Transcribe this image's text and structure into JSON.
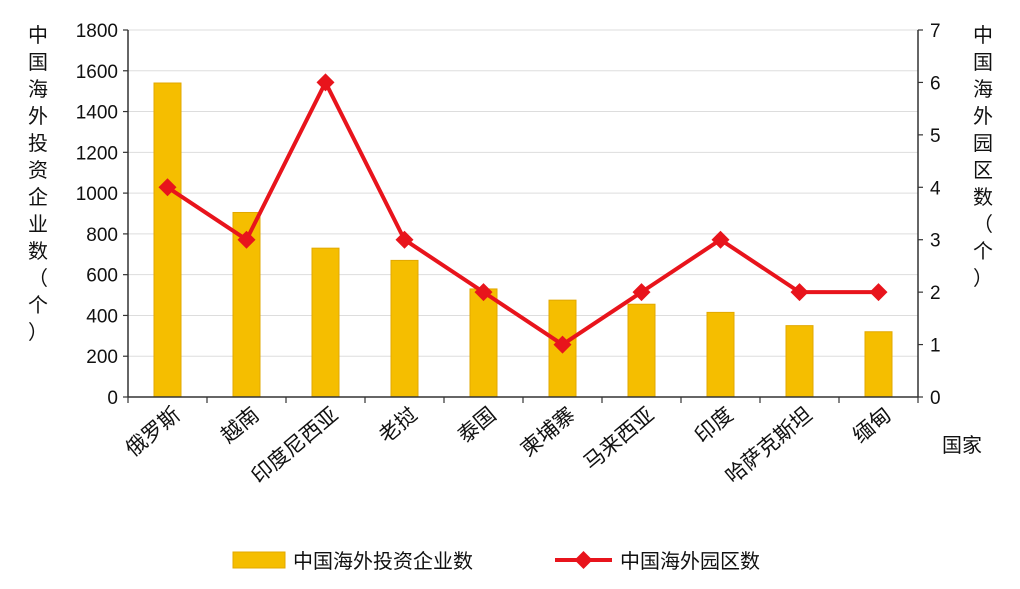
{
  "chart_data": {
    "type": "bar+line",
    "categories": [
      "俄罗斯",
      "越南",
      "印度尼西亚",
      "老挝",
      "泰国",
      "柬埔寨",
      "马来西亚",
      "印度",
      "哈萨克斯坦",
      "缅甸"
    ],
    "series": [
      {
        "name": "中国海外投资企业数",
        "type": "bar",
        "axis": "left",
        "values": [
          1540,
          905,
          730,
          670,
          530,
          475,
          455,
          415,
          350,
          320
        ]
      },
      {
        "name": "中国海外园区数",
        "type": "line",
        "axis": "right",
        "values": [
          4,
          3,
          6,
          3,
          2,
          1,
          2,
          3,
          2,
          2
        ]
      }
    ],
    "left_axis": {
      "label": "中国海外投资企业数（个）",
      "ylim": [
        0,
        1800
      ],
      "ticks": [
        "0",
        "200",
        "400",
        "600",
        "800",
        "1000",
        "1200",
        "1400",
        "1600",
        "1800"
      ]
    },
    "right_axis": {
      "label": "中国海外园区数（个）",
      "ylim": [
        0,
        7
      ],
      "ticks": [
        "0",
        "1",
        "2",
        "3",
        "4",
        "5",
        "6",
        "7"
      ]
    },
    "xlabel": "国家",
    "legend_position": "bottom",
    "colors": {
      "bar": "#F5BE00",
      "bar_edge": "#E2A800",
      "line": "#E8141C",
      "grid": "#DDDDDD",
      "axis": "#333333"
    }
  }
}
